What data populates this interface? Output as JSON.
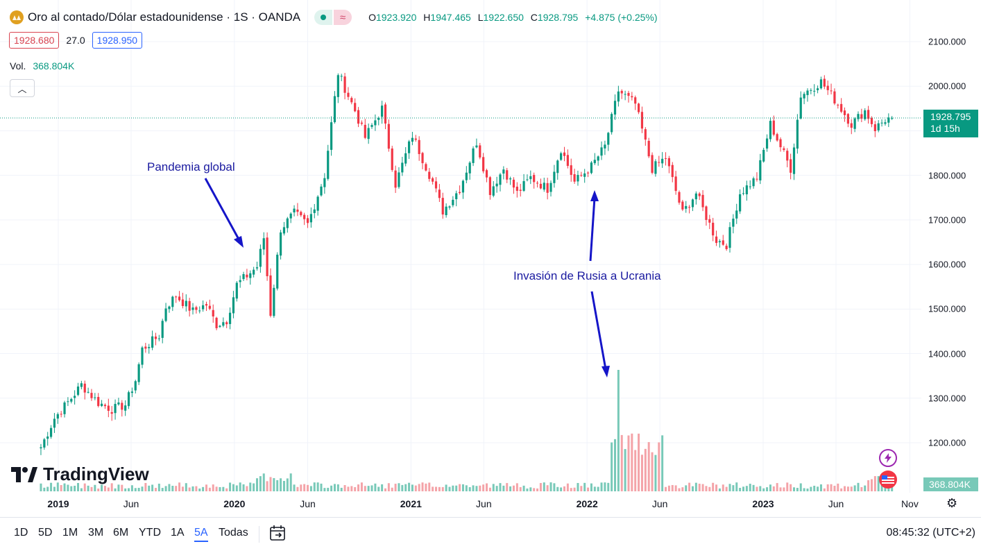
{
  "header": {
    "title": "Oro al contado/Dólar estadounidense · 1S · OANDA",
    "ohlc": {
      "o_label": "O",
      "o": "1923.920",
      "h_label": "H",
      "h": "1947.465",
      "l_label": "L",
      "l": "1922.650",
      "c_label": "C",
      "c": "1928.795",
      "change": "+4.875 (+0.25%)"
    },
    "icons": [
      "gold-coin-icon",
      "market-open-dot-icon",
      "wave-icon"
    ]
  },
  "trade": {
    "bid": "1928.680",
    "spread": "27.0",
    "ask": "1928.950"
  },
  "volume": {
    "label": "Vol.",
    "value": "368.804K"
  },
  "price_axis": {
    "labels": [
      "2100.000",
      "2000.000",
      "1900.000",
      "1800.000",
      "1700.000",
      "1600.000",
      "1500.000",
      "1400.000",
      "1300.000",
      "1200.000"
    ],
    "current_price": "1928.795",
    "countdown": "1d 15h",
    "volume_tag": "368.804K"
  },
  "time_axis": {
    "labels": [
      {
        "text": "2019",
        "bold": true
      },
      {
        "text": "Jun",
        "bold": false
      },
      {
        "text": "2020",
        "bold": true
      },
      {
        "text": "Jun",
        "bold": false
      },
      {
        "text": "2021",
        "bold": true
      },
      {
        "text": "Jun",
        "bold": false
      },
      {
        "text": "2022",
        "bold": true
      },
      {
        "text": "Jun",
        "bold": false
      },
      {
        "text": "2023",
        "bold": true
      },
      {
        "text": "Jun",
        "bold": false
      },
      {
        "text": "Nov",
        "bold": false
      }
    ]
  },
  "annotations": {
    "pandemic": "Pandemia global",
    "invasion": "Invasión de Rusia a Ucrania"
  },
  "branding": {
    "logo_text": "TradingView"
  },
  "bottom_bar": {
    "timeframes": [
      "1D",
      "5D",
      "1M",
      "3M",
      "6M",
      "YTD",
      "1A",
      "5A",
      "Todas"
    ],
    "active": "5A",
    "clock": "08:45:32 (UTC+2)"
  },
  "colors": {
    "up": "#089981",
    "down": "#f23645",
    "up_vol": "#78c9b8",
    "down_vol": "#f4a3a8",
    "annotation": "#1a1aa0",
    "ask": "#2962ff"
  },
  "chart_data": {
    "type": "candlestick",
    "interval": "1W",
    "y_range": [
      1150,
      2130
    ],
    "price_points": [
      [
        "2018-11-26",
        1190
      ],
      [
        "2018-12-24",
        1255
      ],
      [
        "2019-01-28",
        1300
      ],
      [
        "2019-02-18",
        1330
      ],
      [
        "2019-03-25",
        1290
      ],
      [
        "2019-04-22",
        1275
      ],
      [
        "2019-05-20",
        1285
      ],
      [
        "2019-06-10",
        1340
      ],
      [
        "2019-06-24",
        1410
      ],
      [
        "2019-07-29",
        1440
      ],
      [
        "2019-08-12",
        1505
      ],
      [
        "2019-09-02",
        1530
      ],
      [
        "2019-10-07",
        1495
      ],
      [
        "2019-11-04",
        1510
      ],
      [
        "2019-11-25",
        1465
      ],
      [
        "2019-12-16",
        1475
      ],
      [
        "2020-01-06",
        1555
      ],
      [
        "2020-02-17",
        1595
      ],
      [
        "2020-03-02",
        1660
      ],
      [
        "2020-03-16",
        1490
      ],
      [
        "2020-04-06",
        1680
      ],
      [
        "2020-05-04",
        1715
      ],
      [
        "2020-06-01",
        1690
      ],
      [
        "2020-07-06",
        1800
      ],
      [
        "2020-08-03",
        2030
      ],
      [
        "2020-09-07",
        1945
      ],
      [
        "2020-09-28",
        1885
      ],
      [
        "2020-11-02",
        1950
      ],
      [
        "2020-11-30",
        1780
      ],
      [
        "2021-01-04",
        1890
      ],
      [
        "2021-02-15",
        1785
      ],
      [
        "2021-03-08",
        1720
      ],
      [
        "2021-04-12",
        1770
      ],
      [
        "2021-05-17",
        1875
      ],
      [
        "2021-06-14",
        1765
      ],
      [
        "2021-07-12",
        1815
      ],
      [
        "2021-08-09",
        1760
      ],
      [
        "2021-09-06",
        1795
      ],
      [
        "2021-10-11",
        1770
      ],
      [
        "2021-11-08",
        1860
      ],
      [
        "2021-12-06",
        1785
      ],
      [
        "2022-01-10",
        1820
      ],
      [
        "2022-02-07",
        1865
      ],
      [
        "2022-03-07",
        1990
      ],
      [
        "2022-04-11",
        1960
      ],
      [
        "2022-05-16",
        1815
      ],
      [
        "2022-06-13",
        1840
      ],
      [
        "2022-07-18",
        1715
      ],
      [
        "2022-08-15",
        1760
      ],
      [
        "2022-09-26",
        1655
      ],
      [
        "2022-10-17",
        1645
      ],
      [
        "2022-11-14",
        1760
      ],
      [
        "2022-12-19",
        1795
      ],
      [
        "2023-01-16",
        1915
      ],
      [
        "2023-02-27",
        1815
      ],
      [
        "2023-03-20",
        1980
      ],
      [
        "2023-05-01",
        2010
      ],
      [
        "2023-06-05",
        1960
      ],
      [
        "2023-07-03",
        1915
      ],
      [
        "2023-07-31",
        1945
      ],
      [
        "2023-08-21",
        1905
      ],
      [
        "2023-09-11",
        1925
      ],
      [
        "2023-09-25",
        1929
      ]
    ],
    "volume_peak_week": "2022-03-07"
  }
}
